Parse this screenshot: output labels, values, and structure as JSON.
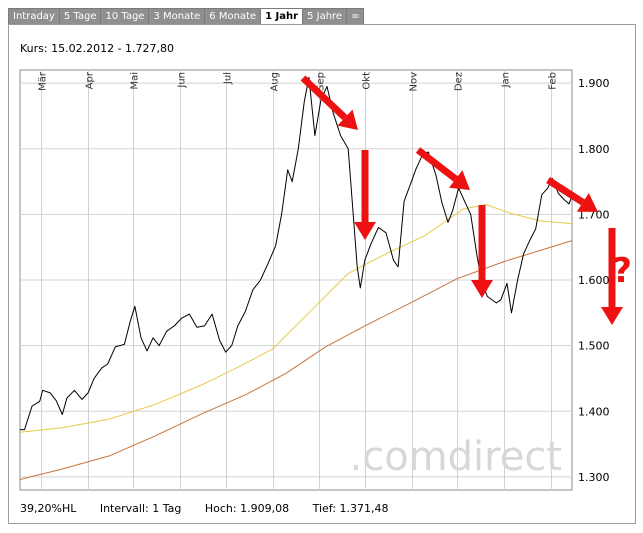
{
  "tabs": [
    {
      "label": "Intraday",
      "active": false
    },
    {
      "label": "5 Tage",
      "active": false
    },
    {
      "label": "10 Tage",
      "active": false
    },
    {
      "label": "3 Monate",
      "active": false
    },
    {
      "label": "6 Monate",
      "active": false
    },
    {
      "label": "1 Jahr",
      "active": true
    },
    {
      "label": "5 Jahre",
      "active": false
    },
    {
      "label": "∞",
      "active": false
    }
  ],
  "header": {
    "kurs": "Kurs: 15.02.2012 - 1.727,80"
  },
  "footer": {
    "hl": "39,20%HL",
    "intervall": "Intervall: 1 Tag",
    "hoch": "Hoch:  1.909,08",
    "tief": "Tief:  1.371,48"
  },
  "watermark": ".comdirect",
  "annotation": {
    "question_mark": "?"
  },
  "colors": {
    "price": "#000000",
    "ma_short": "#e8c84a",
    "ma_long": "#c8743c",
    "arrows": "#ee1111",
    "grid": "#d2d2d2"
  },
  "chart_data": {
    "type": "line",
    "title": "",
    "xlabel": "",
    "ylabel": "",
    "y_axis": "right",
    "ylim": [
      1280,
      1920
    ],
    "yticks": [
      1300,
      1400,
      1500,
      1600,
      1700,
      1800,
      1900
    ],
    "ytick_labels": [
      "1.300",
      "1.400",
      "1.500",
      "1.600",
      "1.700",
      "1.800",
      "1.900"
    ],
    "grid": true,
    "x_range": [
      "2011-02-15",
      "2012-02-15"
    ],
    "months": [
      {
        "label": "Mär",
        "date": "2011-03-01"
      },
      {
        "label": "Apr",
        "date": "2011-04-01"
      },
      {
        "label": "Mai",
        "date": "2011-05-01"
      },
      {
        "label": "Jun",
        "date": "2011-06-01"
      },
      {
        "label": "Jul",
        "date": "2011-07-01"
      },
      {
        "label": "Aug",
        "date": "2011-08-01"
      },
      {
        "label": "Sep",
        "date": "2011-09-01"
      },
      {
        "label": "Okt",
        "date": "2011-10-01"
      },
      {
        "label": "Nov",
        "date": "2011-11-01"
      },
      {
        "label": "Dez",
        "date": "2011-12-01"
      },
      {
        "label": "Jan",
        "date": "2012-01-01"
      },
      {
        "label": "Feb",
        "date": "2012-02-01"
      }
    ],
    "series": [
      {
        "key": "price",
        "points": [
          [
            "2011-02-15",
            1372
          ],
          [
            "2011-02-18",
            1372
          ],
          [
            "2011-02-23",
            1408
          ],
          [
            "2011-02-28",
            1415
          ],
          [
            "2011-03-02",
            1432
          ],
          [
            "2011-03-07",
            1428
          ],
          [
            "2011-03-11",
            1416
          ],
          [
            "2011-03-15",
            1395
          ],
          [
            "2011-03-18",
            1420
          ],
          [
            "2011-03-23",
            1432
          ],
          [
            "2011-03-28",
            1418
          ],
          [
            "2011-04-01",
            1428
          ],
          [
            "2011-04-05",
            1450
          ],
          [
            "2011-04-10",
            1466
          ],
          [
            "2011-04-14",
            1472
          ],
          [
            "2011-04-19",
            1498
          ],
          [
            "2011-04-25",
            1502
          ],
          [
            "2011-04-29",
            1538
          ],
          [
            "2011-05-02",
            1560
          ],
          [
            "2011-05-06",
            1512
          ],
          [
            "2011-05-10",
            1492
          ],
          [
            "2011-05-14",
            1512
          ],
          [
            "2011-05-18",
            1500
          ],
          [
            "2011-05-23",
            1522
          ],
          [
            "2011-05-28",
            1530
          ],
          [
            "2011-06-02",
            1542
          ],
          [
            "2011-06-07",
            1548
          ],
          [
            "2011-06-12",
            1528
          ],
          [
            "2011-06-17",
            1530
          ],
          [
            "2011-06-22",
            1548
          ],
          [
            "2011-06-27",
            1508
          ],
          [
            "2011-07-01",
            1490
          ],
          [
            "2011-07-05",
            1500
          ],
          [
            "2011-07-09",
            1530
          ],
          [
            "2011-07-14",
            1552
          ],
          [
            "2011-07-19",
            1585
          ],
          [
            "2011-07-24",
            1600
          ],
          [
            "2011-07-29",
            1625
          ],
          [
            "2011-08-03",
            1652
          ],
          [
            "2011-08-07",
            1700
          ],
          [
            "2011-08-11",
            1768
          ],
          [
            "2011-08-14",
            1750
          ],
          [
            "2011-08-18",
            1800
          ],
          [
            "2011-08-22",
            1872
          ],
          [
            "2011-08-25",
            1909
          ],
          [
            "2011-08-29",
            1820
          ],
          [
            "2011-09-02",
            1875
          ],
          [
            "2011-09-06",
            1895
          ],
          [
            "2011-09-10",
            1855
          ],
          [
            "2011-09-15",
            1820
          ],
          [
            "2011-09-20",
            1800
          ],
          [
            "2011-09-24",
            1680
          ],
          [
            "2011-09-26",
            1620
          ],
          [
            "2011-09-28",
            1588
          ],
          [
            "2011-10-01",
            1630
          ],
          [
            "2011-10-05",
            1655
          ],
          [
            "2011-10-10",
            1680
          ],
          [
            "2011-10-15",
            1672
          ],
          [
            "2011-10-20",
            1630
          ],
          [
            "2011-10-23",
            1620
          ],
          [
            "2011-10-27",
            1720
          ],
          [
            "2011-10-31",
            1745
          ],
          [
            "2011-11-04",
            1770
          ],
          [
            "2011-11-08",
            1790
          ],
          [
            "2011-11-12",
            1795
          ],
          [
            "2011-11-17",
            1760
          ],
          [
            "2011-11-21",
            1718
          ],
          [
            "2011-11-25",
            1688
          ],
          [
            "2011-11-28",
            1705
          ],
          [
            "2011-12-02",
            1740
          ],
          [
            "2011-12-06",
            1720
          ],
          [
            "2011-12-10",
            1700
          ],
          [
            "2011-12-14",
            1640
          ],
          [
            "2011-12-17",
            1600
          ],
          [
            "2011-12-21",
            1575
          ],
          [
            "2011-12-27",
            1565
          ],
          [
            "2011-12-30",
            1570
          ],
          [
            "2012-01-03",
            1595
          ],
          [
            "2012-01-06",
            1550
          ],
          [
            "2012-01-10",
            1600
          ],
          [
            "2012-01-14",
            1640
          ],
          [
            "2012-01-18",
            1660
          ],
          [
            "2012-01-22",
            1678
          ],
          [
            "2012-01-26",
            1730
          ],
          [
            "2012-01-30",
            1740
          ],
          [
            "2012-02-02",
            1755
          ],
          [
            "2012-02-06",
            1732
          ],
          [
            "2012-02-10",
            1722
          ],
          [
            "2012-02-13",
            1716
          ],
          [
            "2012-02-15",
            1728
          ]
        ]
      },
      {
        "key": "ma_short",
        "points": [
          [
            "2011-02-15",
            1368
          ],
          [
            "2011-03-15",
            1375
          ],
          [
            "2011-04-15",
            1388
          ],
          [
            "2011-05-15",
            1410
          ],
          [
            "2011-06-15",
            1440
          ],
          [
            "2011-07-10",
            1468
          ],
          [
            "2011-08-01",
            1495
          ],
          [
            "2011-08-25",
            1550
          ],
          [
            "2011-09-20",
            1610
          ],
          [
            "2011-10-15",
            1640
          ],
          [
            "2011-11-10",
            1668
          ],
          [
            "2011-12-05",
            1708
          ],
          [
            "2011-12-20",
            1715
          ],
          [
            "2012-01-05",
            1702
          ],
          [
            "2012-01-25",
            1690
          ],
          [
            "2012-02-15",
            1686
          ]
        ]
      },
      {
        "key": "ma_long",
        "points": [
          [
            "2011-02-15",
            1296
          ],
          [
            "2011-03-15",
            1312
          ],
          [
            "2011-04-15",
            1332
          ],
          [
            "2011-05-15",
            1362
          ],
          [
            "2011-06-15",
            1396
          ],
          [
            "2011-07-15",
            1426
          ],
          [
            "2011-08-10",
            1458
          ],
          [
            "2011-09-05",
            1498
          ],
          [
            "2011-10-01",
            1530
          ],
          [
            "2011-11-01",
            1566
          ],
          [
            "2011-12-01",
            1602
          ],
          [
            "2012-01-01",
            1628
          ],
          [
            "2012-02-15",
            1660
          ]
        ]
      }
    ]
  }
}
